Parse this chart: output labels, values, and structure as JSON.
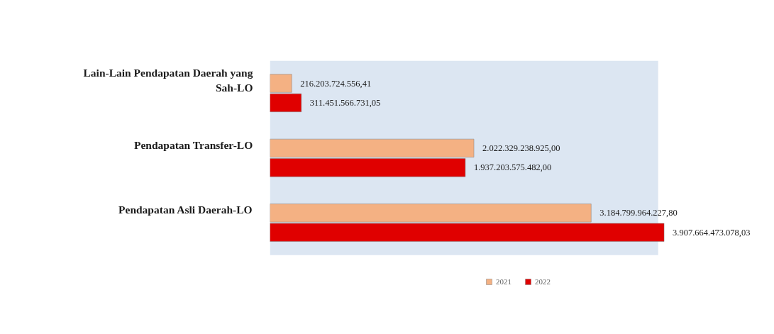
{
  "chart_data": {
    "type": "bar",
    "orientation": "horizontal",
    "categories": [
      "Lain-Lain Pendapatan Daerah yang Sah-LO",
      "Pendapatan Transfer-LO",
      "Pendapatan Asli Daerah-LO"
    ],
    "series": [
      {
        "name": "2021",
        "color": "#f4b183",
        "values": [
          216203724556.41,
          2022329238925.0,
          3184799964227.8
        ],
        "value_labels": [
          "216.203.724.556,41",
          "2.022.329.238.925,00",
          "3.184.799.964.227,80"
        ]
      },
      {
        "name": "2022",
        "color": "#e00000",
        "values": [
          311451566731.05,
          1937203575482.0,
          3907664473078.03
        ],
        "value_labels": [
          "311.451.566.731,05",
          "1.937.203.575.482,00",
          "3.907.664.473.078,03"
        ]
      }
    ],
    "legend": "bottom"
  }
}
